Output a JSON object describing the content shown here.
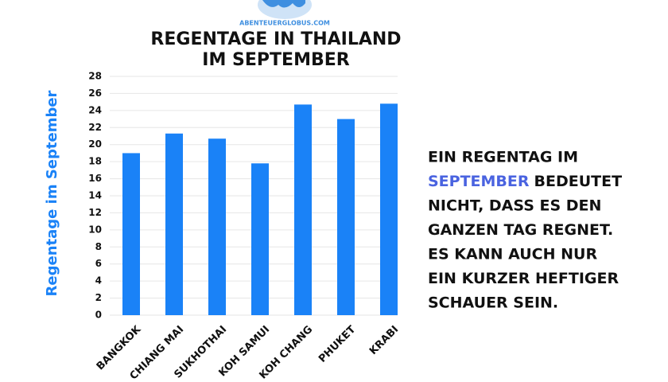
{
  "site": "ABENTEUERGLOBUS.COM",
  "chart_data": {
    "type": "bar",
    "title": [
      "REGENTAGE IN THAILAND",
      "IM SEPTEMBER"
    ],
    "y_label": "Regentage im September",
    "categories": [
      "BANGKOK",
      "CHIANG MAI",
      "SUKHOTHAI",
      "KOH SAMUI",
      "KOH CHANG",
      "PHUKET",
      "KRABI"
    ],
    "values": [
      19,
      21.3,
      20.7,
      17.8,
      24.7,
      23,
      24.8
    ],
    "color": "#1a82f7",
    "ylim": [
      0,
      28
    ],
    "yticks": [
      0,
      2,
      4,
      6,
      8,
      10,
      12,
      14,
      16,
      18,
      20,
      22,
      24,
      26,
      28
    ],
    "grid": true
  },
  "note": {
    "lines": [
      [
        "EIN REGENTAG IM"
      ],
      [
        "SEPTEMBER",
        "BEDEUTET"
      ],
      [
        "NICHT, DASS ES DEN"
      ],
      [
        "GANZEN TAG REGNET."
      ],
      [
        "ES KANN AUCH NUR"
      ],
      [
        "EIN KURZER HEFTIGER"
      ],
      [
        "SCHAUER SEIN."
      ]
    ],
    "highlight_color": "#4a63e0"
  }
}
